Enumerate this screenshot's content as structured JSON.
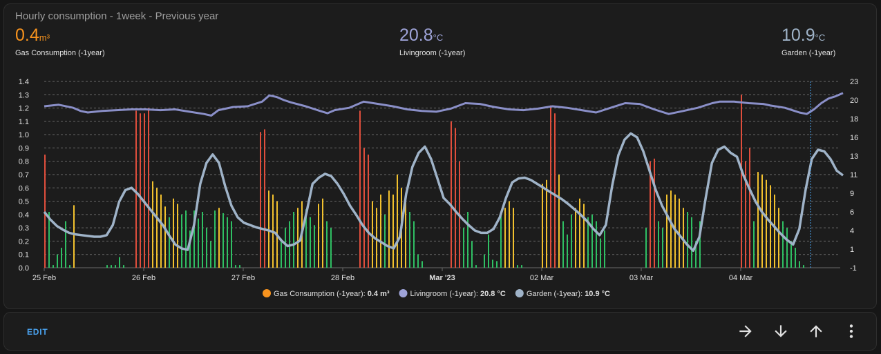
{
  "card": {
    "title": "Hourly consumption - 1week - Previous year",
    "stats": [
      {
        "value": "0.4",
        "unit": "m³",
        "label": "Gas Consumption (-1year)",
        "color": "#f7931e"
      },
      {
        "value": "20.8",
        "unit": "°C",
        "label": "Livingroom (-1year)",
        "color": "#9ea3d8"
      },
      {
        "value": "10.9",
        "unit": "°C",
        "label": "Garden (-1year)",
        "color": "#9fb3c8"
      }
    ]
  },
  "chart_data": {
    "type": "bar+line",
    "x_ticks": [
      "25 Feb",
      "26 Feb",
      "27 Feb",
      "28 Feb",
      "Mar '23",
      "02 Mar",
      "03 Mar",
      "04 Mar"
    ],
    "y_left_ticks": [
      "1.4",
      "1.3",
      "1.2",
      "1.1",
      "1.0",
      "0.9",
      "0.8",
      "0.7",
      "0.6",
      "0.5",
      "0.4",
      "0.3",
      "0.2",
      "0.1",
      "0.0"
    ],
    "y_right_ticks": [
      "23",
      "20",
      "18",
      "16",
      "13",
      "11",
      "9",
      "6",
      "4",
      "1",
      "-1"
    ],
    "ylim_left": [
      0,
      1.4
    ],
    "ylim_right": [
      -1,
      23
    ],
    "grid": true,
    "legend_position": "bottom",
    "legend": [
      {
        "label": "Gas Consumption (-1year):",
        "value": "0.4 m³",
        "color": "#f7931e"
      },
      {
        "label": "Livingroom (-1year):",
        "value": "20.8 °C",
        "color": "#9ea3d8"
      },
      {
        "label": "Garden (-1year):",
        "value": "10.9 °C",
        "color": "#9fb3c8"
      }
    ],
    "bar_colors": {
      "high": "#e04e3c",
      "medium": "#f2c12e",
      "low": "#2fbf63"
    },
    "livingroom_temp": [
      [
        0,
        19.8
      ],
      [
        4,
        20.0
      ],
      [
        8,
        19.6
      ],
      [
        10,
        19.2
      ],
      [
        12,
        19.0
      ],
      [
        16,
        19.2
      ],
      [
        20,
        19.3
      ],
      [
        24,
        19.4
      ],
      [
        28,
        19.4
      ],
      [
        32,
        19.3
      ],
      [
        36,
        19.4
      ],
      [
        40,
        19.1
      ],
      [
        44,
        18.8
      ],
      [
        46,
        18.6
      ],
      [
        48,
        19.3
      ],
      [
        52,
        19.7
      ],
      [
        56,
        19.8
      ],
      [
        60,
        20.4
      ],
      [
        62,
        21.2
      ],
      [
        64,
        21.0
      ],
      [
        66,
        20.6
      ],
      [
        68,
        20.3
      ],
      [
        72,
        19.8
      ],
      [
        76,
        19.2
      ],
      [
        78,
        18.9
      ],
      [
        80,
        19.3
      ],
      [
        84,
        19.6
      ],
      [
        88,
        20.4
      ],
      [
        92,
        20.1
      ],
      [
        96,
        19.8
      ],
      [
        100,
        19.4
      ],
      [
        104,
        19.2
      ],
      [
        108,
        19.1
      ],
      [
        112,
        19.5
      ],
      [
        116,
        20.2
      ],
      [
        120,
        20.1
      ],
      [
        124,
        19.7
      ],
      [
        128,
        19.4
      ],
      [
        132,
        19.3
      ],
      [
        136,
        19.5
      ],
      [
        140,
        19.8
      ],
      [
        144,
        19.6
      ],
      [
        148,
        19.3
      ],
      [
        152,
        19.0
      ],
      [
        156,
        19.6
      ],
      [
        160,
        20.2
      ],
      [
        164,
        20.1
      ],
      [
        168,
        19.4
      ],
      [
        172,
        18.8
      ],
      [
        176,
        19.2
      ],
      [
        180,
        19.6
      ],
      [
        184,
        20.2
      ],
      [
        186,
        20.4
      ],
      [
        190,
        20.4
      ],
      [
        194,
        20.2
      ],
      [
        198,
        20.1
      ],
      [
        200,
        19.9
      ],
      [
        204,
        19.6
      ],
      [
        208,
        19.0
      ],
      [
        210,
        18.8
      ],
      [
        212,
        19.4
      ],
      [
        214,
        20.2
      ],
      [
        216,
        20.8
      ],
      [
        218,
        21.1
      ],
      [
        220,
        21.5
      ]
    ],
    "garden_temp": [
      [
        0,
        6.2
      ],
      [
        2,
        5.2
      ],
      [
        4,
        4.4
      ],
      [
        6,
        3.9
      ],
      [
        8,
        3.5
      ],
      [
        10,
        3.3
      ],
      [
        12,
        3.2
      ],
      [
        14,
        3.1
      ],
      [
        16,
        3.0
      ],
      [
        18,
        3.0
      ],
      [
        20,
        3.2
      ],
      [
        22,
        4.5
      ],
      [
        24,
        7.5
      ],
      [
        26,
        9.0
      ],
      [
        28,
        9.3
      ],
      [
        30,
        8.5
      ],
      [
        32,
        7.5
      ],
      [
        34,
        6.5
      ],
      [
        36,
        5.5
      ],
      [
        38,
        4.5
      ],
      [
        40,
        3.2
      ],
      [
        42,
        2.0
      ],
      [
        44,
        1.5
      ],
      [
        46,
        1.3
      ],
      [
        48,
        4.5
      ],
      [
        50,
        9.8
      ],
      [
        52,
        12.5
      ],
      [
        54,
        13.6
      ],
      [
        56,
        12.5
      ],
      [
        58,
        9.5
      ],
      [
        60,
        7.0
      ],
      [
        62,
        5.5
      ],
      [
        64,
        4.8
      ],
      [
        66,
        4.5
      ],
      [
        68,
        4.2
      ],
      [
        70,
        4.0
      ],
      [
        72,
        3.8
      ],
      [
        74,
        3.5
      ],
      [
        76,
        2.5
      ],
      [
        78,
        1.8
      ],
      [
        80,
        2.0
      ],
      [
        82,
        2.5
      ],
      [
        84,
        6.0
      ],
      [
        86,
        9.8
      ],
      [
        88,
        10.6
      ],
      [
        90,
        11.1
      ],
      [
        92,
        10.8
      ],
      [
        94,
        9.8
      ],
      [
        96,
        8.5
      ],
      [
        98,
        7.0
      ],
      [
        100,
        5.8
      ],
      [
        102,
        4.5
      ],
      [
        104,
        3.5
      ],
      [
        106,
        2.8
      ],
      [
        108,
        2.3
      ],
      [
        110,
        1.8
      ],
      [
        112,
        1.5
      ],
      [
        114,
        3.0
      ],
      [
        116,
        8.5
      ],
      [
        118,
        12.0
      ],
      [
        120,
        13.8
      ],
      [
        122,
        14.6
      ],
      [
        124,
        13.0
      ],
      [
        126,
        10.5
      ],
      [
        128,
        8.0
      ],
      [
        130,
        7.2
      ],
      [
        132,
        6.2
      ],
      [
        134,
        5.3
      ],
      [
        136,
        4.5
      ],
      [
        138,
        3.8
      ],
      [
        140,
        3.5
      ],
      [
        142,
        3.5
      ],
      [
        144,
        4.0
      ],
      [
        146,
        5.5
      ],
      [
        148,
        8.0
      ],
      [
        150,
        10.0
      ],
      [
        152,
        10.5
      ],
      [
        154,
        10.6
      ],
      [
        156,
        10.3
      ],
      [
        158,
        9.8
      ],
      [
        160,
        9.3
      ],
      [
        162,
        8.8
      ],
      [
        164,
        8.3
      ],
      [
        166,
        7.8
      ],
      [
        168,
        7.2
      ],
      [
        170,
        6.5
      ],
      [
        172,
        5.8
      ],
      [
        174,
        5.0
      ],
      [
        176,
        4.0
      ],
      [
        178,
        3.2
      ],
      [
        180,
        4.5
      ],
      [
        182,
        9.5
      ],
      [
        184,
        13.5
      ],
      [
        186,
        15.5
      ],
      [
        188,
        16.3
      ],
      [
        190,
        15.8
      ],
      [
        192,
        14.0
      ],
      [
        194,
        11.5
      ],
      [
        196,
        9.0
      ],
      [
        198,
        7.0
      ],
      [
        200,
        5.5
      ],
      [
        202,
        4.0
      ],
      [
        204,
        3.0
      ],
      [
        206,
        2.0
      ],
      [
        208,
        1.2
      ],
      [
        210,
        3.0
      ],
      [
        212,
        8.0
      ],
      [
        214,
        12.5
      ],
      [
        216,
        14.2
      ],
      [
        218,
        14.6
      ],
      [
        220,
        13.8
      ],
      [
        222,
        13.3
      ],
      [
        224,
        11.0
      ],
      [
        226,
        9.2
      ],
      [
        228,
        7.5
      ],
      [
        230,
        6.2
      ],
      [
        232,
        5.2
      ],
      [
        234,
        4.3
      ],
      [
        236,
        3.4
      ],
      [
        238,
        2.6
      ],
      [
        240,
        2.0
      ],
      [
        242,
        4.0
      ],
      [
        244,
        9.0
      ],
      [
        246,
        13.0
      ],
      [
        248,
        14.2
      ],
      [
        250,
        14.0
      ],
      [
        252,
        13.0
      ],
      [
        254,
        11.5
      ],
      [
        256,
        10.9
      ]
    ],
    "gas_bars": []
  },
  "footer": {
    "edit_label": "EDIT",
    "icons": [
      "arrow-right-icon",
      "arrow-down-icon",
      "arrow-up-icon",
      "more-vert-icon"
    ]
  }
}
